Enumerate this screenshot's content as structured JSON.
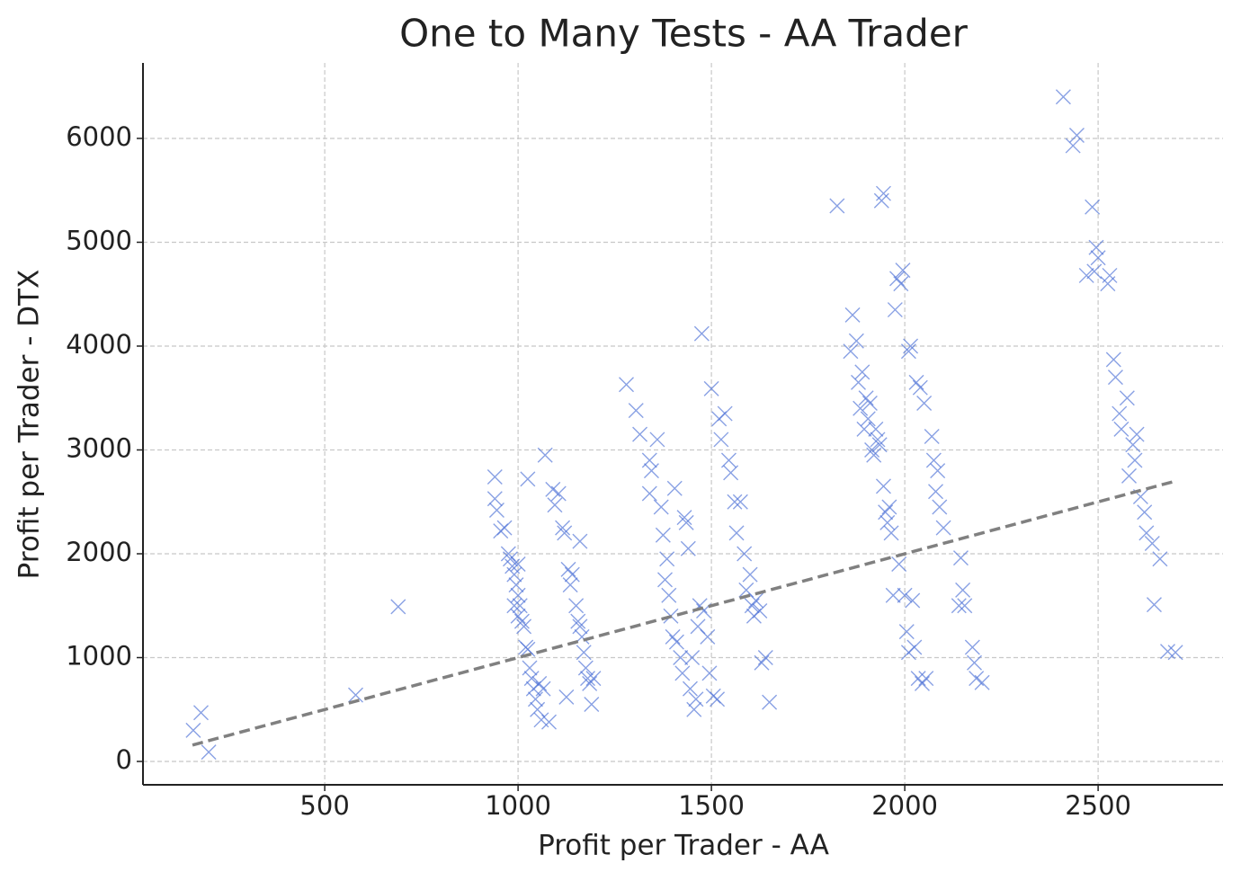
{
  "chart_data": {
    "type": "scatter",
    "title": "One to Many Tests - AA Trader",
    "xlabel": "Profit per Trader - AA",
    "ylabel": "Profit per Trader - DTX",
    "color": "#4a6fd6",
    "marker": "x",
    "grid": true,
    "xlim": [
      30,
      2823
    ],
    "xticks": [
      500,
      1000,
      1500,
      2000,
      2500
    ],
    "ylim": [
      -225,
      6727
    ],
    "yticks": [
      0,
      1000,
      2000,
      3000,
      4000,
      5000,
      6000
    ],
    "x": [
      160,
      180,
      200,
      580,
      690,
      940,
      940,
      945,
      955,
      965,
      975,
      980,
      985,
      990,
      995,
      1000,
      1000,
      1005,
      1010,
      1015,
      1020,
      1025,
      1030,
      1035,
      1040,
      1045,
      1050,
      1055,
      1060,
      1065,
      1070,
      1080,
      1025,
      990,
      1000,
      1090,
      1095,
      1105,
      1115,
      1120,
      1125,
      1130,
      1135,
      1140,
      1150,
      1155,
      1160,
      1165,
      1170,
      1175,
      1180,
      1185,
      1190,
      1195,
      1160,
      1280,
      1305,
      1315,
      1340,
      1345,
      1340,
      1360,
      1370,
      1375,
      1380,
      1385,
      1390,
      1395,
      1400,
      1405,
      1410,
      1420,
      1425,
      1430,
      1435,
      1440,
      1445,
      1450,
      1455,
      1460,
      1465,
      1470,
      1475,
      1480,
      1490,
      1495,
      1500,
      1505,
      1515,
      1520,
      1525,
      1535,
      1545,
      1550,
      1560,
      1565,
      1575,
      1585,
      1590,
      1600,
      1605,
      1610,
      1615,
      1625,
      1630,
      1640,
      1650,
      1825,
      1860,
      1865,
      1875,
      1880,
      1885,
      1890,
      1895,
      1900,
      1905,
      1910,
      1915,
      1920,
      1925,
      1930,
      1935,
      1940,
      1945,
      1945,
      1950,
      1955,
      1960,
      1965,
      1970,
      1975,
      1980,
      1985,
      1990,
      1995,
      2000,
      2005,
      2010,
      2010,
      2015,
      2020,
      2025,
      2030,
      2035,
      2040,
      2045,
      2050,
      2055,
      2070,
      2075,
      2080,
      2085,
      2090,
      2100,
      2140,
      2145,
      2150,
      2155,
      2175,
      2180,
      2185,
      2200,
      2410,
      2435,
      2445,
      2470,
      2485,
      2490,
      2495,
      2500,
      2525,
      2530,
      2540,
      2545,
      2555,
      2560,
      2575,
      2580,
      2590,
      2595,
      2600,
      2610,
      2620,
      2625,
      2640,
      2645,
      2660,
      2680,
      2700
    ],
    "values": [
      300,
      470,
      90,
      640,
      1490,
      2740,
      2530,
      2420,
      2220,
      2250,
      2000,
      1950,
      1880,
      1800,
      1700,
      1600,
      1900,
      1500,
      1350,
      1300,
      1100,
      1080,
      900,
      800,
      700,
      600,
      500,
      750,
      400,
      700,
      2950,
      380,
      2720,
      1500,
      1400,
      2620,
      2470,
      2580,
      2250,
      2200,
      620,
      1850,
      1700,
      1800,
      1500,
      1350,
      2120,
      1200,
      1050,
      900,
      800,
      750,
      550,
      800,
      1300,
      3630,
      3380,
      3150,
      2900,
      2800,
      2580,
      3100,
      2450,
      2180,
      1750,
      1950,
      1600,
      1400,
      1200,
      2630,
      1150,
      1000,
      850,
      2350,
      2300,
      2050,
      700,
      1000,
      500,
      600,
      1300,
      1500,
      4120,
      1450,
      1200,
      850,
      3590,
      630,
      600,
      3300,
      3100,
      3350,
      2900,
      2780,
      2500,
      2200,
      2500,
      2000,
      1650,
      1800,
      1500,
      1400,
      1550,
      1450,
      950,
      1000,
      570,
      5350,
      3950,
      4300,
      4050,
      3650,
      3400,
      3750,
      3200,
      3500,
      3300,
      3450,
      3000,
      2950,
      3200,
      3100,
      3050,
      5400,
      5470,
      2650,
      2400,
      2300,
      2450,
      2200,
      1600,
      4350,
      4650,
      1900,
      4600,
      4730,
      1600,
      1250,
      1050,
      3950,
      4000,
      1550,
      1100,
      3650,
      800,
      3600,
      750,
      3450,
      800,
      3130,
      2900,
      2600,
      2800,
      2450,
      2250,
      1500,
      1960,
      1650,
      1500,
      1100,
      950,
      800,
      760,
      6400,
      5930,
      6030,
      4680,
      5340,
      4720,
      4950,
      4850,
      4600,
      4680,
      3870,
      3700,
      3350,
      3200,
      3500,
      2750,
      3050,
      2900,
      3150,
      2550,
      2400,
      2200,
      2100,
      1510,
      1950,
      1060,
      1050
    ],
    "trend_line": {
      "x": [
        158,
        2695
      ],
      "values": [
        158,
        2695
      ],
      "color": "#808080"
    }
  }
}
